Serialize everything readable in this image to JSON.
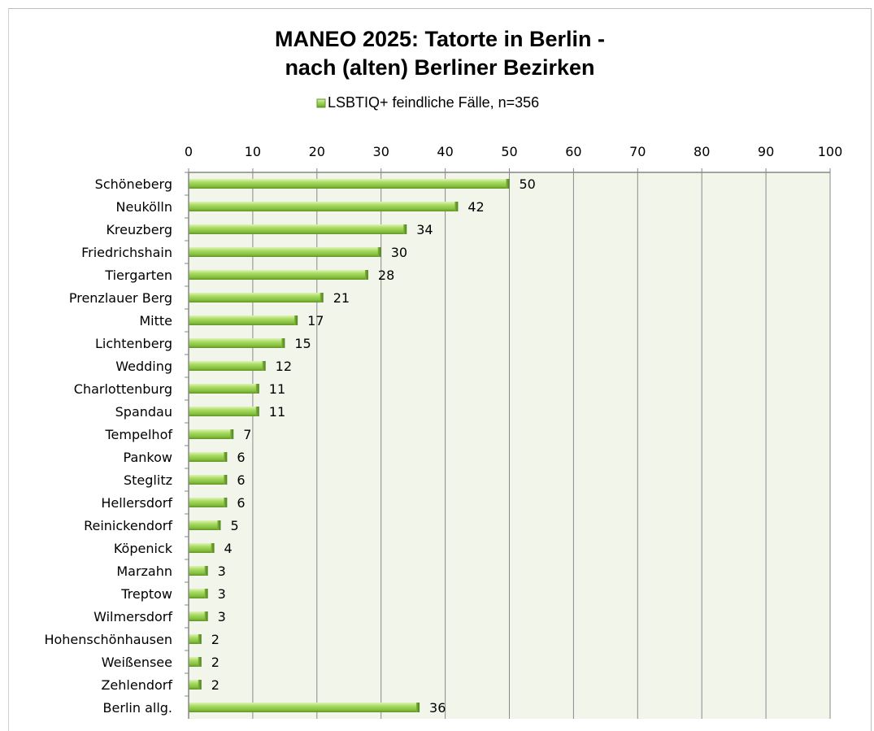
{
  "chart_data": {
    "type": "bar",
    "orientation": "horizontal",
    "title": "MANEO 2025: Tatorte in Berlin -",
    "subtitle": "nach (alten) Berliner Bezirken",
    "legend_label": "LSBTIQ+ feindliche Fälle, n=356",
    "legend_position": "top",
    "xlim": [
      0,
      100
    ],
    "x_ticks": [
      "0",
      "10",
      "20",
      "30",
      "40",
      "50",
      "60",
      "70",
      "80",
      "90",
      "100"
    ],
    "grid": true,
    "bar_color": "#92d050",
    "plot_background": "#f1f5ea",
    "categories": [
      "Schöneberg",
      "Neukölln",
      "Kreuzberg",
      "Friedrichshain",
      "Tiergarten",
      "Prenzlauer Berg",
      "Mitte",
      "Lichtenberg",
      "Wedding",
      "Charlottenburg",
      "Spandau",
      "Tempelhof",
      "Pankow",
      "Steglitz",
      "Hellersdorf",
      "Reinickendorf",
      "Köpenick",
      "Marzahn",
      "Treptow",
      "Wilmersdorf",
      "Hohenschönhausen",
      "Weißensee",
      "Zehlendorf",
      "Berlin allg."
    ],
    "values": [
      50,
      42,
      34,
      30,
      28,
      21,
      17,
      15,
      12,
      11,
      11,
      7,
      6,
      6,
      6,
      5,
      4,
      3,
      3,
      3,
      2,
      2,
      2,
      36
    ]
  }
}
